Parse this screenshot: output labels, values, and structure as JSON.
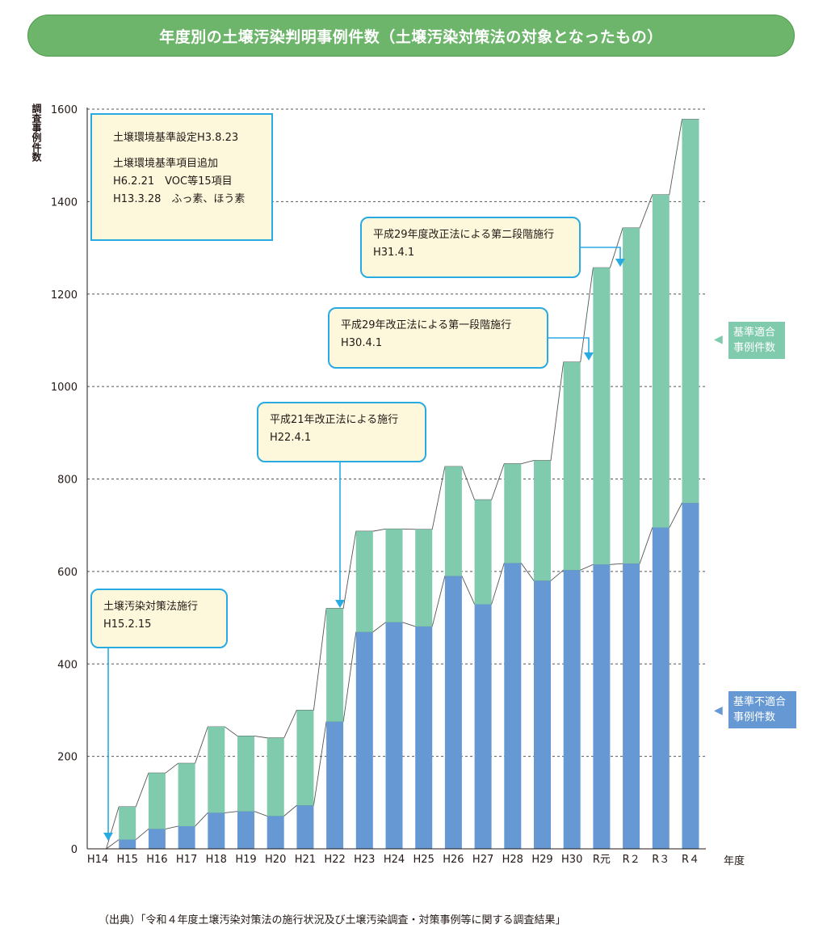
{
  "header": {
    "title": "年度別の土壌汚染判明事例件数（土壌汚染対策法の対象となったもの）"
  },
  "chart_data": {
    "type": "bar",
    "stacked": true,
    "ylabel": "調査事例件数",
    "xlabel": "年度",
    "ylim": [
      0,
      1600
    ],
    "yticks": [
      "0",
      "200",
      "400",
      "600",
      "800",
      "1000",
      "1200",
      "1400",
      "1600"
    ],
    "grid": "horizontal dashed",
    "categories": [
      "H14",
      "H15",
      "H16",
      "H17",
      "H18",
      "H19",
      "H20",
      "H21",
      "H22",
      "H23",
      "H24",
      "H25",
      "H26",
      "H27",
      "H28",
      "H29",
      "H30",
      "R元",
      "R２",
      "R３",
      "R４"
    ],
    "series": [
      {
        "name": "基準不適合事例件数",
        "color": "#6699d3",
        "values": [
          0,
          20,
          43,
          49,
          78,
          81,
          71,
          94,
          275,
          469,
          490,
          481,
          590,
          529,
          618,
          580,
          603,
          615,
          617,
          695,
          748
        ]
      },
      {
        "name": "基準適合事例件数",
        "color": "#80cbae",
        "values": [
          0,
          71,
          121,
          136,
          186,
          163,
          169,
          206,
          245,
          218,
          202,
          210,
          237,
          226,
          215,
          260,
          450,
          642,
          726,
          720,
          830
        ]
      }
    ],
    "totals": [
      0,
      91,
      164,
      185,
      264,
      244,
      240,
      300,
      520,
      687,
      692,
      691,
      827,
      755,
      833,
      840,
      1053,
      1257,
      1343,
      1415,
      1578
    ]
  },
  "notes": {
    "standards": {
      "line1": "土壌環境基準設定H3.8.23",
      "line2": "土壌環境基準項目追加",
      "line3": "H6.2.21　VOC等15項目",
      "line4": "H13.3.28　ふっ素、ほう素"
    },
    "law_enforce": {
      "line1": "土壌汚染対策法施行",
      "line2": "H15.2.15"
    },
    "amend_21": {
      "line1": "平成21年改正法による施行",
      "line2": "H22.4.1"
    },
    "amend_29_first": {
      "line1": "平成29年改正法による第一段階施行",
      "line2": "H30.4.1"
    },
    "amend_29_second": {
      "line1": "平成29年度改正法による第二段階施行",
      "line2": "H31.4.1"
    }
  },
  "legend": {
    "conforming": {
      "line1": "基準適合",
      "line2": "事例件数",
      "color": "#80cbae"
    },
    "nonconforming": {
      "line1": "基準不適合",
      "line2": "事例件数",
      "color": "#6699d3"
    }
  },
  "source": "（出典）「令和４年度土壌汚染対策法の施行状況及び土壌汚染調査・対策事例等に関する調査結果」"
}
